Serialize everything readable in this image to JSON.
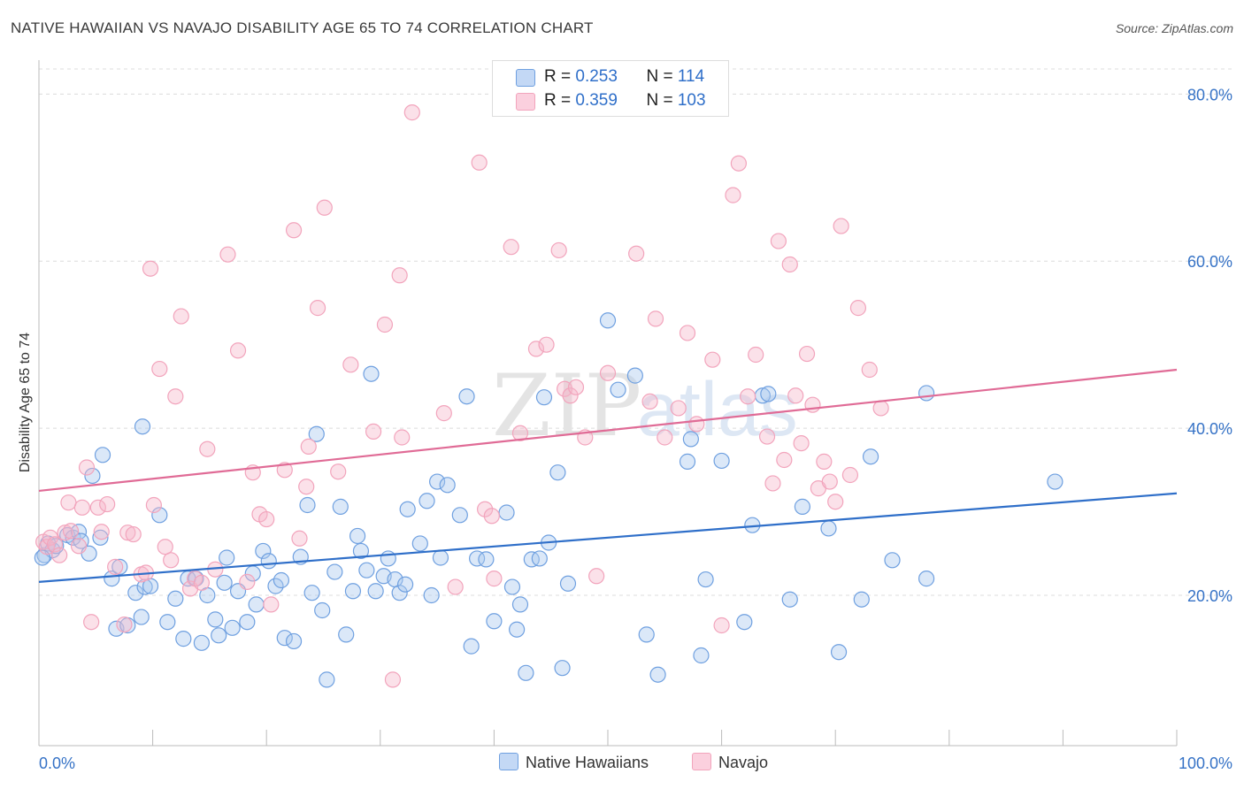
{
  "title": "NATIVE HAWAIIAN VS NAVAJO DISABILITY AGE 65 TO 74 CORRELATION CHART",
  "source": "Source: ZipAtlas.com",
  "watermark": {
    "part1": "ZIP",
    "part2": "atlas"
  },
  "legend": {
    "rows": [
      {
        "r_label": "R = ",
        "r_value": "0.253",
        "n_label": "N = ",
        "n_value": "114",
        "color": "#a9c6ee"
      },
      {
        "r_label": "R = ",
        "r_value": "0.359",
        "n_label": "N = ",
        "n_value": "103",
        "color": "#f6b7cb"
      }
    ]
  },
  "chart_data": {
    "type": "scatter",
    "title": "NATIVE HAWAIIAN VS NAVAJO DISABILITY AGE 65 TO 74 CORRELATION CHART",
    "xlabel": "",
    "ylabel": "Disability Age 65 to 74",
    "xlim": [
      0,
      100
    ],
    "ylim": [
      2,
      83
    ],
    "x_tick_labels": [
      "0.0%",
      "100.0%"
    ],
    "y_ticks": [
      20,
      40,
      60,
      80
    ],
    "y_tick_labels": [
      "20.0%",
      "40.0%",
      "60.0%",
      "80.0%"
    ],
    "grid": true,
    "legend_position": "top-center",
    "series": [
      {
        "name": "Native Hawaiians",
        "color": "#6fa0e0",
        "trend": {
          "x": [
            0,
            100
          ],
          "y": [
            21.6,
            32.2
          ],
          "color": "#2f6fc9"
        },
        "points": [
          [
            0.5,
            24.8
          ],
          [
            0.8,
            26.2
          ],
          [
            1.2,
            25.4
          ],
          [
            2.5,
            27.2
          ],
          [
            3.0,
            26.9
          ],
          [
            3.5,
            27.6
          ],
          [
            3.7,
            26.5
          ],
          [
            4.4,
            25.0
          ],
          [
            5.4,
            26.9
          ],
          [
            4.7,
            34.3
          ],
          [
            5.6,
            36.8
          ],
          [
            6.4,
            22.0
          ],
          [
            7.1,
            23.4
          ],
          [
            6.8,
            16.0
          ],
          [
            7.8,
            16.4
          ],
          [
            8.5,
            20.3
          ],
          [
            9.0,
            17.4
          ],
          [
            9.3,
            21.0
          ],
          [
            9.8,
            21.1
          ],
          [
            10.6,
            29.6
          ],
          [
            9.1,
            40.2
          ],
          [
            11.3,
            16.8
          ],
          [
            12.0,
            19.6
          ],
          [
            12.7,
            14.8
          ],
          [
            13.1,
            22.0
          ],
          [
            13.8,
            22.0
          ],
          [
            14.3,
            14.3
          ],
          [
            14.8,
            20.0
          ],
          [
            15.5,
            17.1
          ],
          [
            15.8,
            15.2
          ],
          [
            16.3,
            21.5
          ],
          [
            16.5,
            24.5
          ],
          [
            17.0,
            16.1
          ],
          [
            17.5,
            20.5
          ],
          [
            18.3,
            16.8
          ],
          [
            18.8,
            22.6
          ],
          [
            19.1,
            18.9
          ],
          [
            19.7,
            25.3
          ],
          [
            20.2,
            24.1
          ],
          [
            20.8,
            21.1
          ],
          [
            21.3,
            21.8
          ],
          [
            21.6,
            14.9
          ],
          [
            22.4,
            14.5
          ],
          [
            23.0,
            24.6
          ],
          [
            23.6,
            30.8
          ],
          [
            24.0,
            20.3
          ],
          [
            24.4,
            39.3
          ],
          [
            24.9,
            18.2
          ],
          [
            25.3,
            9.9
          ],
          [
            26.0,
            22.8
          ],
          [
            26.5,
            30.6
          ],
          [
            27.0,
            15.3
          ],
          [
            27.6,
            20.5
          ],
          [
            28.0,
            27.1
          ],
          [
            28.3,
            25.3
          ],
          [
            28.8,
            23.0
          ],
          [
            29.2,
            46.5
          ],
          [
            29.6,
            20.5
          ],
          [
            30.3,
            22.3
          ],
          [
            30.7,
            24.4
          ],
          [
            31.3,
            21.9
          ],
          [
            31.7,
            20.3
          ],
          [
            32.2,
            21.3
          ],
          [
            32.4,
            30.3
          ],
          [
            33.5,
            26.2
          ],
          [
            34.1,
            31.3
          ],
          [
            34.5,
            20.0
          ],
          [
            35.0,
            33.6
          ],
          [
            35.3,
            24.5
          ],
          [
            35.9,
            33.2
          ],
          [
            37.0,
            29.6
          ],
          [
            37.6,
            43.8
          ],
          [
            38.0,
            13.9
          ],
          [
            38.5,
            24.4
          ],
          [
            39.3,
            24.3
          ],
          [
            40.0,
            16.9
          ],
          [
            41.1,
            29.9
          ],
          [
            41.6,
            21.0
          ],
          [
            42.0,
            15.9
          ],
          [
            42.3,
            18.9
          ],
          [
            42.8,
            10.7
          ],
          [
            43.3,
            24.3
          ],
          [
            44.0,
            24.4
          ],
          [
            44.4,
            43.7
          ],
          [
            44.8,
            26.3
          ],
          [
            45.6,
            34.7
          ],
          [
            46.0,
            11.3
          ],
          [
            46.5,
            21.4
          ],
          [
            50.0,
            52.9
          ],
          [
            50.9,
            44.6
          ],
          [
            52.4,
            46.3
          ],
          [
            53.4,
            15.3
          ],
          [
            54.4,
            10.5
          ],
          [
            57.0,
            36.0
          ],
          [
            57.3,
            38.7
          ],
          [
            58.2,
            12.8
          ],
          [
            58.6,
            21.9
          ],
          [
            60.0,
            36.1
          ],
          [
            62.0,
            16.8
          ],
          [
            62.7,
            28.4
          ],
          [
            63.6,
            43.9
          ],
          [
            64.1,
            44.1
          ],
          [
            66.0,
            19.5
          ],
          [
            67.1,
            30.6
          ],
          [
            69.4,
            28.0
          ],
          [
            70.3,
            13.2
          ],
          [
            72.3,
            19.5
          ],
          [
            73.1,
            36.6
          ],
          [
            75.0,
            24.2
          ],
          [
            78.0,
            22.0
          ],
          [
            78.0,
            44.2
          ],
          [
            89.3,
            33.6
          ],
          [
            0.3,
            24.5
          ],
          [
            1.5,
            25.9
          ]
        ]
      },
      {
        "name": "Navajo",
        "color": "#f2a4bc",
        "trend": {
          "x": [
            0,
            100
          ],
          "y": [
            32.5,
            47.0
          ],
          "color": "#e06b96"
        },
        "points": [
          [
            0.4,
            26.4
          ],
          [
            0.7,
            25.8
          ],
          [
            1.0,
            26.9
          ],
          [
            1.4,
            26.1
          ],
          [
            1.8,
            24.8
          ],
          [
            2.3,
            27.5
          ],
          [
            2.8,
            27.7
          ],
          [
            2.6,
            31.1
          ],
          [
            3.5,
            25.9
          ],
          [
            3.8,
            30.5
          ],
          [
            4.2,
            35.3
          ],
          [
            4.6,
            16.8
          ],
          [
            5.2,
            30.5
          ],
          [
            5.5,
            27.6
          ],
          [
            6.0,
            30.9
          ],
          [
            6.7,
            23.4
          ],
          [
            7.5,
            16.5
          ],
          [
            7.8,
            27.5
          ],
          [
            8.3,
            27.3
          ],
          [
            9.0,
            22.5
          ],
          [
            9.4,
            22.7
          ],
          [
            9.8,
            59.1
          ],
          [
            10.1,
            30.8
          ],
          [
            10.6,
            47.1
          ],
          [
            11.1,
            25.8
          ],
          [
            11.6,
            24.2
          ],
          [
            12.0,
            43.8
          ],
          [
            12.5,
            53.4
          ],
          [
            13.3,
            20.8
          ],
          [
            13.7,
            22.0
          ],
          [
            14.3,
            21.5
          ],
          [
            14.8,
            37.5
          ],
          [
            15.5,
            23.1
          ],
          [
            16.6,
            60.8
          ],
          [
            17.5,
            49.3
          ],
          [
            18.3,
            21.6
          ],
          [
            18.8,
            34.7
          ],
          [
            19.4,
            29.7
          ],
          [
            20.0,
            29.1
          ],
          [
            20.4,
            18.9
          ],
          [
            21.6,
            35.0
          ],
          [
            22.4,
            63.7
          ],
          [
            22.9,
            26.8
          ],
          [
            23.5,
            33.0
          ],
          [
            23.7,
            37.8
          ],
          [
            24.5,
            54.4
          ],
          [
            25.1,
            66.4
          ],
          [
            26.3,
            34.8
          ],
          [
            27.4,
            47.6
          ],
          [
            29.4,
            39.6
          ],
          [
            30.4,
            52.4
          ],
          [
            31.1,
            9.9
          ],
          [
            31.7,
            58.3
          ],
          [
            31.9,
            38.9
          ],
          [
            32.8,
            77.8
          ],
          [
            35.6,
            41.8
          ],
          [
            36.6,
            21.0
          ],
          [
            38.7,
            71.8
          ],
          [
            39.2,
            30.3
          ],
          [
            39.8,
            29.5
          ],
          [
            40.0,
            22.0
          ],
          [
            41.5,
            61.7
          ],
          [
            42.3,
            39.4
          ],
          [
            43.7,
            49.5
          ],
          [
            44.6,
            50.0
          ],
          [
            45.7,
            61.3
          ],
          [
            46.2,
            44.7
          ],
          [
            46.7,
            43.9
          ],
          [
            47.2,
            44.9
          ],
          [
            48.0,
            38.9
          ],
          [
            49.0,
            22.3
          ],
          [
            50.0,
            46.6
          ],
          [
            52.5,
            60.9
          ],
          [
            53.7,
            43.2
          ],
          [
            54.2,
            53.1
          ],
          [
            55.0,
            38.9
          ],
          [
            56.2,
            42.4
          ],
          [
            57.0,
            51.4
          ],
          [
            57.8,
            40.5
          ],
          [
            59.2,
            48.2
          ],
          [
            60.0,
            16.4
          ],
          [
            61.0,
            67.9
          ],
          [
            61.5,
            71.7
          ],
          [
            62.3,
            43.8
          ],
          [
            63.0,
            48.8
          ],
          [
            64.0,
            39.0
          ],
          [
            64.5,
            33.4
          ],
          [
            65.0,
            62.4
          ],
          [
            65.5,
            36.2
          ],
          [
            66.0,
            59.6
          ],
          [
            66.5,
            43.9
          ],
          [
            67.0,
            38.2
          ],
          [
            67.5,
            48.9
          ],
          [
            68.0,
            42.8
          ],
          [
            68.5,
            32.8
          ],
          [
            69.0,
            36.0
          ],
          [
            69.5,
            33.6
          ],
          [
            70.0,
            31.2
          ],
          [
            70.5,
            64.2
          ],
          [
            71.3,
            34.4
          ],
          [
            72.0,
            54.4
          ],
          [
            73.0,
            47.0
          ],
          [
            74.0,
            42.4
          ]
        ]
      }
    ]
  }
}
